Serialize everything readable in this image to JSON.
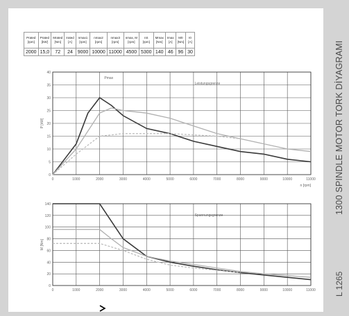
{
  "title": "1300 SPINDLE MOTOR TORK DİYAGRAMI",
  "page_code": "L 1265",
  "spec_table": {
    "headers": [
      "Prated\n[rpm]",
      "Prated\n[kW]",
      "Mrated\n[Nm]",
      "Irated\n[A]",
      "nmax1\n[rpm]",
      "nmax2\n[rpm]",
      "nmax3\n[rpm]",
      "nmax, M\n[rpm]",
      "nS\n[rpm]",
      "Mmax\n[Nm]",
      "Imax\n[A]",
      "M0\n[Nm]",
      "I0\n[A]"
    ],
    "values": [
      "2000",
      "15,0",
      "72",
      "24",
      "9000",
      "10000",
      "11000",
      "4500",
      "5300",
      "140",
      "46",
      "96",
      "30"
    ]
  },
  "chart_data": [
    {
      "type": "line",
      "xlabel": "n [rpm]",
      "ylabel": "P [kW]",
      "xlim": [
        0,
        11000
      ],
      "ylim": [
        0,
        40
      ],
      "x_ticks": [
        "0",
        "1000",
        "2000",
        "3000",
        "4000",
        "5000",
        "6000",
        "7000",
        "8000",
        "9000",
        "10000",
        "11000"
      ],
      "y_ticks": [
        "0",
        "5",
        "10",
        "15",
        "20",
        "25",
        "30",
        "35",
        "40"
      ],
      "annotations": [
        "Leistungsgrenze",
        "Pmax"
      ],
      "grid": true,
      "series": [
        {
          "x": [
            0,
            500,
            1000,
            1500,
            2000,
            2500,
            3000,
            4000,
            5000,
            6000,
            7000,
            8000,
            9000,
            10000,
            11000
          ],
          "values": [
            0,
            6,
            12,
            24,
            30,
            27,
            23,
            18,
            16,
            13,
            11,
            9,
            8,
            6,
            5
          ],
          "color": "#3a3a3a"
        },
        {
          "x": [
            0,
            500,
            1000,
            1500,
            2000,
            2500,
            3000,
            4000,
            5000,
            6000,
            7000,
            8000,
            9000,
            10000,
            11000
          ],
          "values": [
            0,
            5,
            10,
            17,
            24,
            26,
            25,
            24,
            22,
            19,
            16,
            14,
            12,
            10,
            9
          ],
          "color": "#b0b0b0"
        },
        {
          "x": [
            0,
            1000,
            2000,
            3000,
            4000,
            5000,
            6000,
            7000,
            8000
          ],
          "values": [
            0,
            8,
            15,
            16,
            16,
            16,
            15.5,
            15,
            14
          ],
          "color": "#bdbdbd"
        }
      ]
    },
    {
      "type": "line",
      "ylabel": "M [Nm]",
      "xlim": [
        0,
        11000
      ],
      "ylim": [
        0,
        140
      ],
      "x_ticks": [
        "0",
        "1000",
        "2000",
        "3000",
        "4000",
        "5000",
        "6000",
        "7000",
        "8000",
        "9000",
        "10000",
        "11000"
      ],
      "y_ticks": [
        "0",
        "20",
        "40",
        "60",
        "80",
        "100",
        "120",
        "140"
      ],
      "annotations": [
        "Spannungsgrenze"
      ],
      "grid": true,
      "series": [
        {
          "x": [
            0,
            1000,
            2000,
            2500,
            3000,
            4000,
            5000,
            6000,
            7000,
            8000,
            9000,
            10000,
            11000
          ],
          "values": [
            140,
            140,
            140,
            110,
            80,
            50,
            40,
            33,
            27,
            22,
            18,
            14,
            10
          ],
          "color": "#3a3a3a"
        },
        {
          "x": [
            0,
            1000,
            2000,
            2500,
            3000,
            4000,
            5000,
            6000,
            7000,
            8000,
            9000,
            10000,
            11000
          ],
          "values": [
            96,
            96,
            96,
            80,
            65,
            50,
            42,
            36,
            30,
            24,
            20,
            17,
            14
          ],
          "color": "#b0b0b0"
        },
        {
          "x": [
            0,
            1000,
            2000,
            3000,
            4000,
            5000,
            6000,
            7000,
            8000
          ],
          "values": [
            72,
            72,
            72,
            60,
            45,
            35,
            30,
            26,
            22
          ],
          "color": "#bdbdbd"
        }
      ]
    }
  ]
}
